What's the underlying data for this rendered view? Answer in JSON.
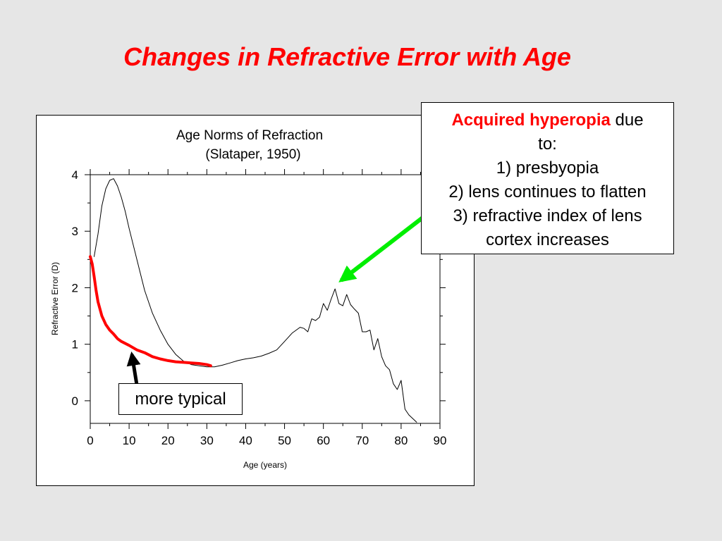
{
  "slide": {
    "title": "Changes in Refractive Error with Age"
  },
  "callout": {
    "highlight": "Acquired hyperopia",
    "due": "due",
    "to": "to:",
    "items": [
      "1) presbyopia",
      "2) lens continues to flatten",
      "3) refractive index of lens",
      "cortex increases"
    ]
  },
  "typical_label": "more typical",
  "colors": {
    "title": "#ff0000",
    "highlight": "#ff0000",
    "typical_curve": "#ff0000",
    "hyperopia_arrow": "#00ee00",
    "typical_arrow": "#000000",
    "background": "#e6e6e6"
  },
  "chart_data": {
    "type": "line",
    "title": "Age Norms of Refraction",
    "subtitle": "(Slataper, 1950)",
    "xlabel": "Age (years)",
    "ylabel": "Refractive Error (D)",
    "xlim": [
      0,
      90
    ],
    "ylim": [
      -0.4,
      4.0
    ],
    "xticks": [
      0,
      10,
      20,
      30,
      40,
      50,
      60,
      70,
      80,
      90
    ],
    "yticks": [
      0,
      1,
      2,
      3,
      4
    ],
    "grid": false,
    "series": [
      {
        "key": "slataper",
        "color": "#000000",
        "x": [
          1,
          2,
          3,
          4,
          5,
          6,
          7,
          8,
          9,
          10,
          12,
          14,
          16,
          18,
          20,
          22,
          24,
          26,
          28,
          30,
          32,
          34,
          36,
          38,
          40,
          42,
          44,
          46,
          48,
          50,
          52,
          54,
          55,
          56,
          57,
          58,
          59,
          60,
          61,
          62,
          63,
          64,
          65,
          66,
          67,
          68,
          69,
          70,
          71,
          72,
          73,
          74,
          75,
          76,
          77,
          78,
          79,
          80,
          81,
          82,
          84
        ],
        "y": [
          2.55,
          2.95,
          3.45,
          3.75,
          3.9,
          3.93,
          3.8,
          3.6,
          3.35,
          3.05,
          2.5,
          1.95,
          1.55,
          1.25,
          1.0,
          0.82,
          0.7,
          0.64,
          0.62,
          0.6,
          0.6,
          0.63,
          0.67,
          0.71,
          0.74,
          0.76,
          0.79,
          0.84,
          0.9,
          1.05,
          1.2,
          1.3,
          1.28,
          1.22,
          1.45,
          1.42,
          1.48,
          1.72,
          1.6,
          1.8,
          1.98,
          1.72,
          1.68,
          1.88,
          1.7,
          1.62,
          1.55,
          1.22,
          1.22,
          1.25,
          0.9,
          1.1,
          0.78,
          0.62,
          0.55,
          0.3,
          0.2,
          0.36,
          -0.15,
          -0.25,
          -0.38
        ]
      },
      {
        "key": "typical",
        "color": "#ff0000",
        "x": [
          0,
          0.5,
          1,
          1.5,
          2,
          3,
          4,
          5,
          6,
          7,
          8,
          10,
          12,
          14,
          16,
          18,
          20,
          22,
          24,
          26,
          28,
          30,
          31
        ],
        "y": [
          2.55,
          2.42,
          2.2,
          1.95,
          1.75,
          1.5,
          1.35,
          1.25,
          1.18,
          1.1,
          1.05,
          0.98,
          0.9,
          0.85,
          0.78,
          0.74,
          0.71,
          0.69,
          0.68,
          0.67,
          0.66,
          0.64,
          0.62
        ]
      }
    ],
    "annotations": [
      {
        "kind": "arrow",
        "color": "#00ee00",
        "points_to": {
          "x": 63,
          "y": 2.0
        }
      },
      {
        "kind": "arrow",
        "color": "#000000",
        "points_to": {
          "x": 11,
          "y": 0.75
        }
      }
    ]
  }
}
